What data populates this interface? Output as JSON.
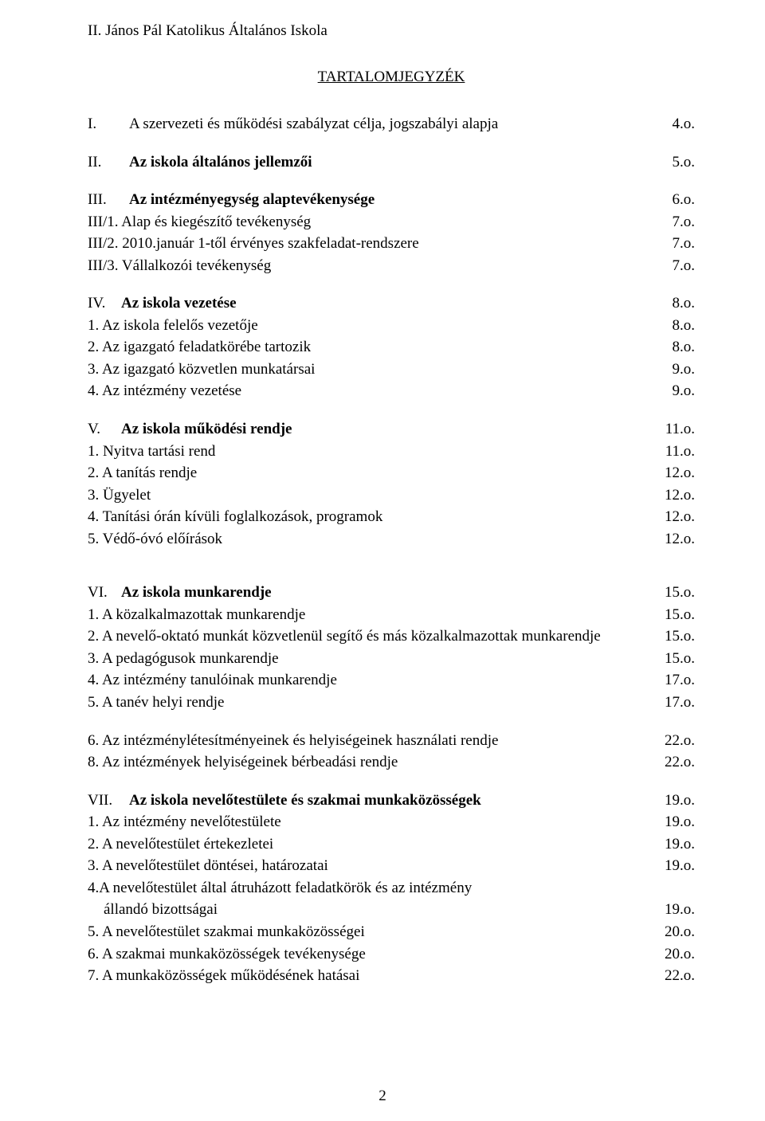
{
  "header": "II. János Pál Katolikus Általános Iskola",
  "title": "TARTALOMJEGYZÉK",
  "groups": [
    {
      "rows": [
        {
          "label": "<span class='roman'>I.</span>A szervezeti és működési szabályzat célja, jogszabályi alapja",
          "page": "4.o.",
          "bold": false
        }
      ]
    },
    {
      "rows": [
        {
          "label": "<span class='roman'>II.</span><span class='bold'>Az iskola általános jellemzői</span>",
          "page": "5.o.",
          "bold": false
        }
      ]
    },
    {
      "rows": [
        {
          "label": "<span class='roman'>III.</span><span class='bold'>Az intézményegység alaptevékenysége</span>",
          "page": "6.o.",
          "bold": false
        },
        {
          "label": "III/1. Alap és kiegészítő tevékenység",
          "page": "7.o.",
          "bold": false
        },
        {
          "label": "III/2. 2010.január 1-től érvényes szakfeladat-rendszere",
          "page": "7.o.",
          "bold": false
        },
        {
          "label": "III/3. Vállalkozói tevékenység",
          "page": "7.o.",
          "bold": false
        }
      ]
    },
    {
      "rows": [
        {
          "label": "<span class='roman-narrow'>IV.</span><span class='bold'>Az iskola vezetése</span>",
          "page": "8.o.",
          "bold": false
        },
        {
          "label": "1. Az iskola felelős vezetője",
          "page": "8.o.",
          "bold": false
        },
        {
          "label": "2. Az igazgató feladatkörébe tartozik",
          "page": "8.o.",
          "bold": false
        },
        {
          "label": "3. Az igazgató közvetlen munkatársai",
          "page": "9.o.",
          "bold": false
        },
        {
          "label": "4. Az intézmény vezetése",
          "page": "9.o.",
          "bold": false
        }
      ]
    },
    {
      "rows": [
        {
          "label": "<span class='roman-narrow'>V.</span><span class='bold'>Az iskola működési rendje</span>",
          "page": "11.o.",
          "bold": false
        },
        {
          "label": "1. Nyitva tartási rend",
          "page": "11.o.",
          "bold": false
        },
        {
          "label": "2. A tanítás rendje",
          "page": "12.o.",
          "bold": false
        },
        {
          "label": "3. Ügyelet",
          "page": "12.o.",
          "bold": false
        },
        {
          "label": "4. Tanítási órán kívüli foglalkozások, programok",
          "page": "12.o.",
          "bold": false
        },
        {
          "label": "5. Védő-óvó előírások",
          "page": "12.o.",
          "bold": false
        }
      ]
    },
    {
      "rows": [
        {
          "label": "<span class='roman-narrow'>VI.</span><span class='bold'>Az iskola munkarendje</span>",
          "page": "15.o.",
          "bold": false
        },
        {
          "label": "1. A közalkalmazottak munkarendje",
          "page": "15.o.",
          "bold": false
        },
        {
          "label": "2. A nevelő-oktató munkát közvetlenül segítő és más közalkalmazottak munkarendje",
          "page": "15.o.",
          "bold": false
        },
        {
          "label": "3. A pedagógusok munkarendje",
          "page": "15.o.",
          "bold": false
        },
        {
          "label": "4. Az intézmény tanulóinak munkarendje",
          "page": "17.o.",
          "bold": false
        },
        {
          "label": "5. A tanév helyi rendje",
          "page": "17.o.",
          "bold": false
        }
      ],
      "bigGapBefore": true
    },
    {
      "rows": [
        {
          "label": "6. Az intézménylétesítményeinek és helyiségeinek használati rendje",
          "page": "22.o.",
          "bold": false
        },
        {
          "label": "8. Az intézmények helyiségeinek bérbeadási rendje",
          "page": "22.o.",
          "bold": false
        }
      ]
    },
    {
      "rows": [
        {
          "label": "<span class='roman'>VII.</span><span class='bold'>Az iskola nevelőtestülete és szakmai munkaközösségek</span>",
          "page": "19.o.",
          "bold": false
        },
        {
          "label": "1. Az intézmény nevelőtestülete",
          "page": "19.o.",
          "bold": false
        },
        {
          "label": "2. A nevelőtestület értekezletei",
          "page": "19.o.",
          "bold": false
        },
        {
          "label": "3. A nevelőtestület döntései, határozatai",
          "page": "19.o.",
          "bold": false
        },
        {
          "label": "4.A nevelőtestület által átruházott feladatkörök és az intézmény",
          "page": "",
          "bold": false,
          "nopage": true
        },
        {
          "label": "állandó bizottságai",
          "page": "19.o.",
          "bold": false,
          "indent": true
        },
        {
          "label": "5. A nevelőtestület szakmai munkaközösségei",
          "page": "20.o.",
          "bold": false
        },
        {
          "label": "6. A szakmai munkaközösségek tevékenysége",
          "page": "20.o.",
          "bold": false
        },
        {
          "label": "7. A munkaközösségek működésének hatásai",
          "page": "22.o.",
          "bold": false
        }
      ]
    }
  ],
  "pageNumber": "2"
}
